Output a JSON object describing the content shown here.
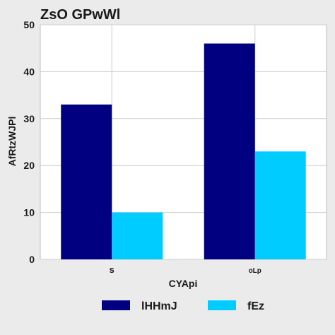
{
  "chart_data": {
    "type": "bar",
    "title": "ZsO GPwWl",
    "xlabel": "CYApi",
    "ylabel": "AfRtzWJPl",
    "categories": [
      "s",
      "oLp"
    ],
    "series": [
      {
        "name": "lHHmJ",
        "values": [
          33,
          46
        ],
        "color": "#000080"
      },
      {
        "name": "fEz",
        "values": [
          10,
          23
        ],
        "color": "#00ccff"
      }
    ],
    "ylim": [
      0,
      50
    ],
    "yticks": [
      0,
      10,
      20,
      30,
      40,
      50
    ],
    "grid": true,
    "legend_position": "bottom"
  },
  "colors": {
    "background": "#ebebeb",
    "plot_background": "#ffffff",
    "grid": "#cccccc"
  }
}
